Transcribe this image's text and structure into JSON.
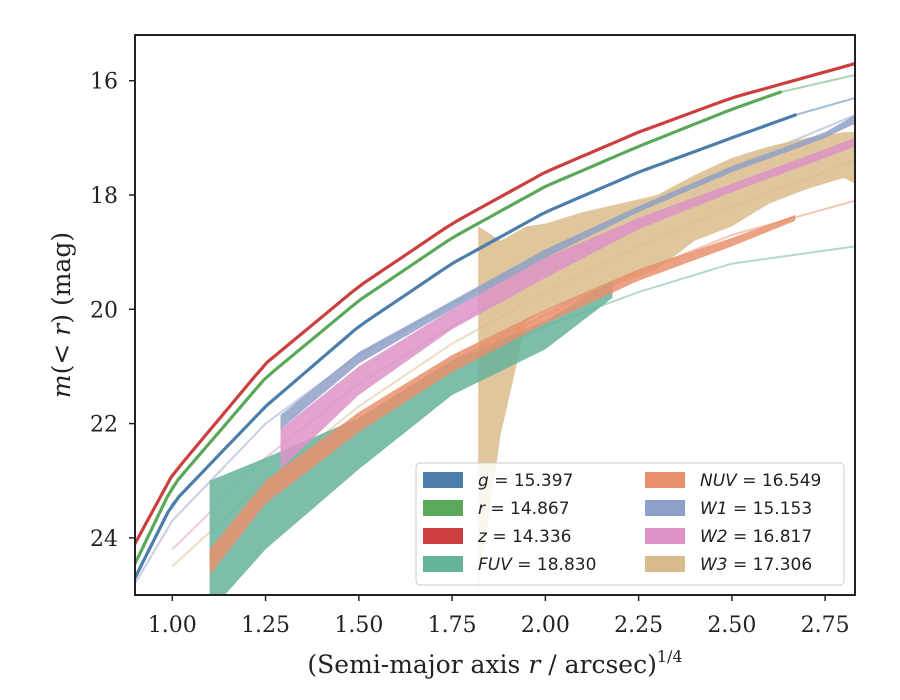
{
  "chart_data": {
    "type": "line",
    "xlabel": "(Semi-major axis r / arcsec)^{1/4}",
    "ylabel": "m(< r) (mag)",
    "xlim": [
      0.9,
      2.83
    ],
    "ylim": [
      25.0,
      15.2
    ],
    "y_inverted": true,
    "x_ticks": [
      "1.00",
      "1.25",
      "1.50",
      "1.75",
      "2.00",
      "2.25",
      "2.50",
      "2.75"
    ],
    "y_ticks": [
      "16",
      "18",
      "20",
      "22",
      "24"
    ],
    "grid": false,
    "legend_position": "lower-right",
    "series": [
      {
        "name": "g = 15.397",
        "band": "g",
        "value": "15.397",
        "color": "#4c7eab",
        "style": "line",
        "data_end": 2.67,
        "model_x": [
          0.9,
          1.0,
          1.25,
          1.5,
          1.75,
          2.0,
          2.25,
          2.5,
          2.67,
          2.83
        ],
        "model_y": [
          24.7,
          23.4,
          21.7,
          20.3,
          19.2,
          18.3,
          17.6,
          17.0,
          16.6,
          16.3
        ]
      },
      {
        "name": "r = 14.867",
        "band": "r",
        "value": "14.867",
        "color": "#5aa85a",
        "style": "line",
        "data_end": 2.63,
        "model_x": [
          0.9,
          1.0,
          1.25,
          1.5,
          1.75,
          2.0,
          2.25,
          2.5,
          2.63,
          2.83
        ],
        "model_y": [
          24.45,
          23.1,
          21.2,
          19.85,
          18.75,
          17.85,
          17.15,
          16.5,
          16.2,
          15.9
        ]
      },
      {
        "name": "z = 14.336",
        "band": "z",
        "value": "14.336",
        "color": "#cc3f3f",
        "style": "line",
        "data_end": 2.83,
        "model_x": [
          0.9,
          1.0,
          1.25,
          1.5,
          1.75,
          2.0,
          2.25,
          2.5,
          2.83
        ],
        "model_y": [
          24.1,
          22.9,
          20.95,
          19.6,
          18.5,
          17.6,
          16.9,
          16.3,
          15.7
        ]
      },
      {
        "name": "FUV = 18.830",
        "band": "FUV",
        "value": "18.830",
        "color": "#66b39c",
        "style": "band",
        "band_x": [
          1.1,
          1.25,
          1.5,
          1.75,
          2.0,
          2.18
        ],
        "band_lo": [
          23.0,
          22.6,
          21.9,
          20.9,
          20.2,
          19.5
        ],
        "band_hi": [
          25.3,
          24.2,
          22.8,
          21.5,
          20.7,
          19.8
        ],
        "model_x": [
          1.1,
          1.25,
          1.5,
          1.75,
          2.0,
          2.25,
          2.5,
          2.83
        ],
        "model_y": [
          24.3,
          23.3,
          22.1,
          21.05,
          20.3,
          19.7,
          19.2,
          18.9
        ]
      },
      {
        "name": "NUV = 16.549",
        "band": "NUV",
        "value": "16.549",
        "color": "#e8906c",
        "style": "band",
        "band_x": [
          1.1,
          1.25,
          1.5,
          1.75,
          2.0,
          2.25,
          2.5,
          2.67
        ],
        "band_lo": [
          24.2,
          23.0,
          21.8,
          20.8,
          20.0,
          19.3,
          18.75,
          18.35
        ],
        "band_hi": [
          24.65,
          23.4,
          22.15,
          21.1,
          20.25,
          19.5,
          18.9,
          18.45
        ],
        "model_x": [
          1.1,
          1.25,
          1.5,
          1.75,
          2.0,
          2.25,
          2.5,
          2.83
        ],
        "model_y": [
          24.4,
          23.2,
          21.95,
          20.9,
          20.1,
          19.35,
          18.7,
          18.1
        ]
      },
      {
        "name": "W1 = 15.153",
        "band": "W1",
        "value": "15.153",
        "color": "#8fa0c8",
        "style": "band",
        "band_x": [
          1.29,
          1.5,
          1.75,
          2.0,
          2.25,
          2.5,
          2.75,
          2.83
        ],
        "band_lo": [
          21.85,
          20.75,
          19.85,
          18.95,
          18.2,
          17.5,
          16.9,
          16.6
        ],
        "band_hi": [
          22.1,
          20.95,
          20.0,
          19.1,
          18.3,
          17.6,
          17.0,
          16.75
        ],
        "model_x": [
          0.9,
          1.0,
          1.25,
          1.5,
          1.75,
          2.0,
          2.25,
          2.5,
          2.83
        ],
        "model_y": [
          24.8,
          23.7,
          22.0,
          20.8,
          19.9,
          19.0,
          18.2,
          17.5,
          16.6
        ]
      },
      {
        "name": "W2 = 16.817",
        "band": "W2",
        "value": "16.817",
        "color": "#dd93c7",
        "style": "band",
        "band_x": [
          1.29,
          1.5,
          1.75,
          2.0,
          2.25,
          2.5,
          2.75,
          2.83
        ],
        "band_lo": [
          22.1,
          21.0,
          20.0,
          19.1,
          18.4,
          17.8,
          17.2,
          17.0
        ],
        "band_hi": [
          22.8,
          21.5,
          20.35,
          19.45,
          18.6,
          17.95,
          17.35,
          17.15
        ],
        "model_x": [
          1.0,
          1.25,
          1.5,
          1.75,
          2.0,
          2.25,
          2.5,
          2.83
        ],
        "model_y": [
          24.2,
          22.6,
          21.3,
          20.3,
          19.3,
          18.5,
          17.9,
          17.1
        ]
      },
      {
        "name": "W3 = 17.306",
        "band": "W3",
        "value": "17.306",
        "color": "#d9bc8c",
        "style": "band",
        "band_x": [
          1.82,
          1.88,
          1.95,
          2.0,
          2.1,
          2.2,
          2.3,
          2.4,
          2.5,
          2.6,
          2.7,
          2.8,
          2.83
        ],
        "band_lo": [
          18.55,
          18.8,
          18.55,
          18.5,
          18.3,
          18.15,
          18.0,
          17.65,
          17.35,
          17.15,
          17.0,
          16.9,
          16.9
        ],
        "band_hi": [
          24.9,
          22.2,
          20.2,
          20.0,
          19.8,
          19.55,
          19.3,
          18.8,
          18.55,
          18.15,
          17.9,
          17.7,
          17.8
        ],
        "model_x": [
          1.0,
          1.25,
          1.5,
          1.75,
          2.0,
          2.25,
          2.5,
          2.83
        ],
        "model_y": [
          24.5,
          23.0,
          21.7,
          20.6,
          19.7,
          18.9,
          18.2,
          17.4
        ]
      }
    ]
  }
}
